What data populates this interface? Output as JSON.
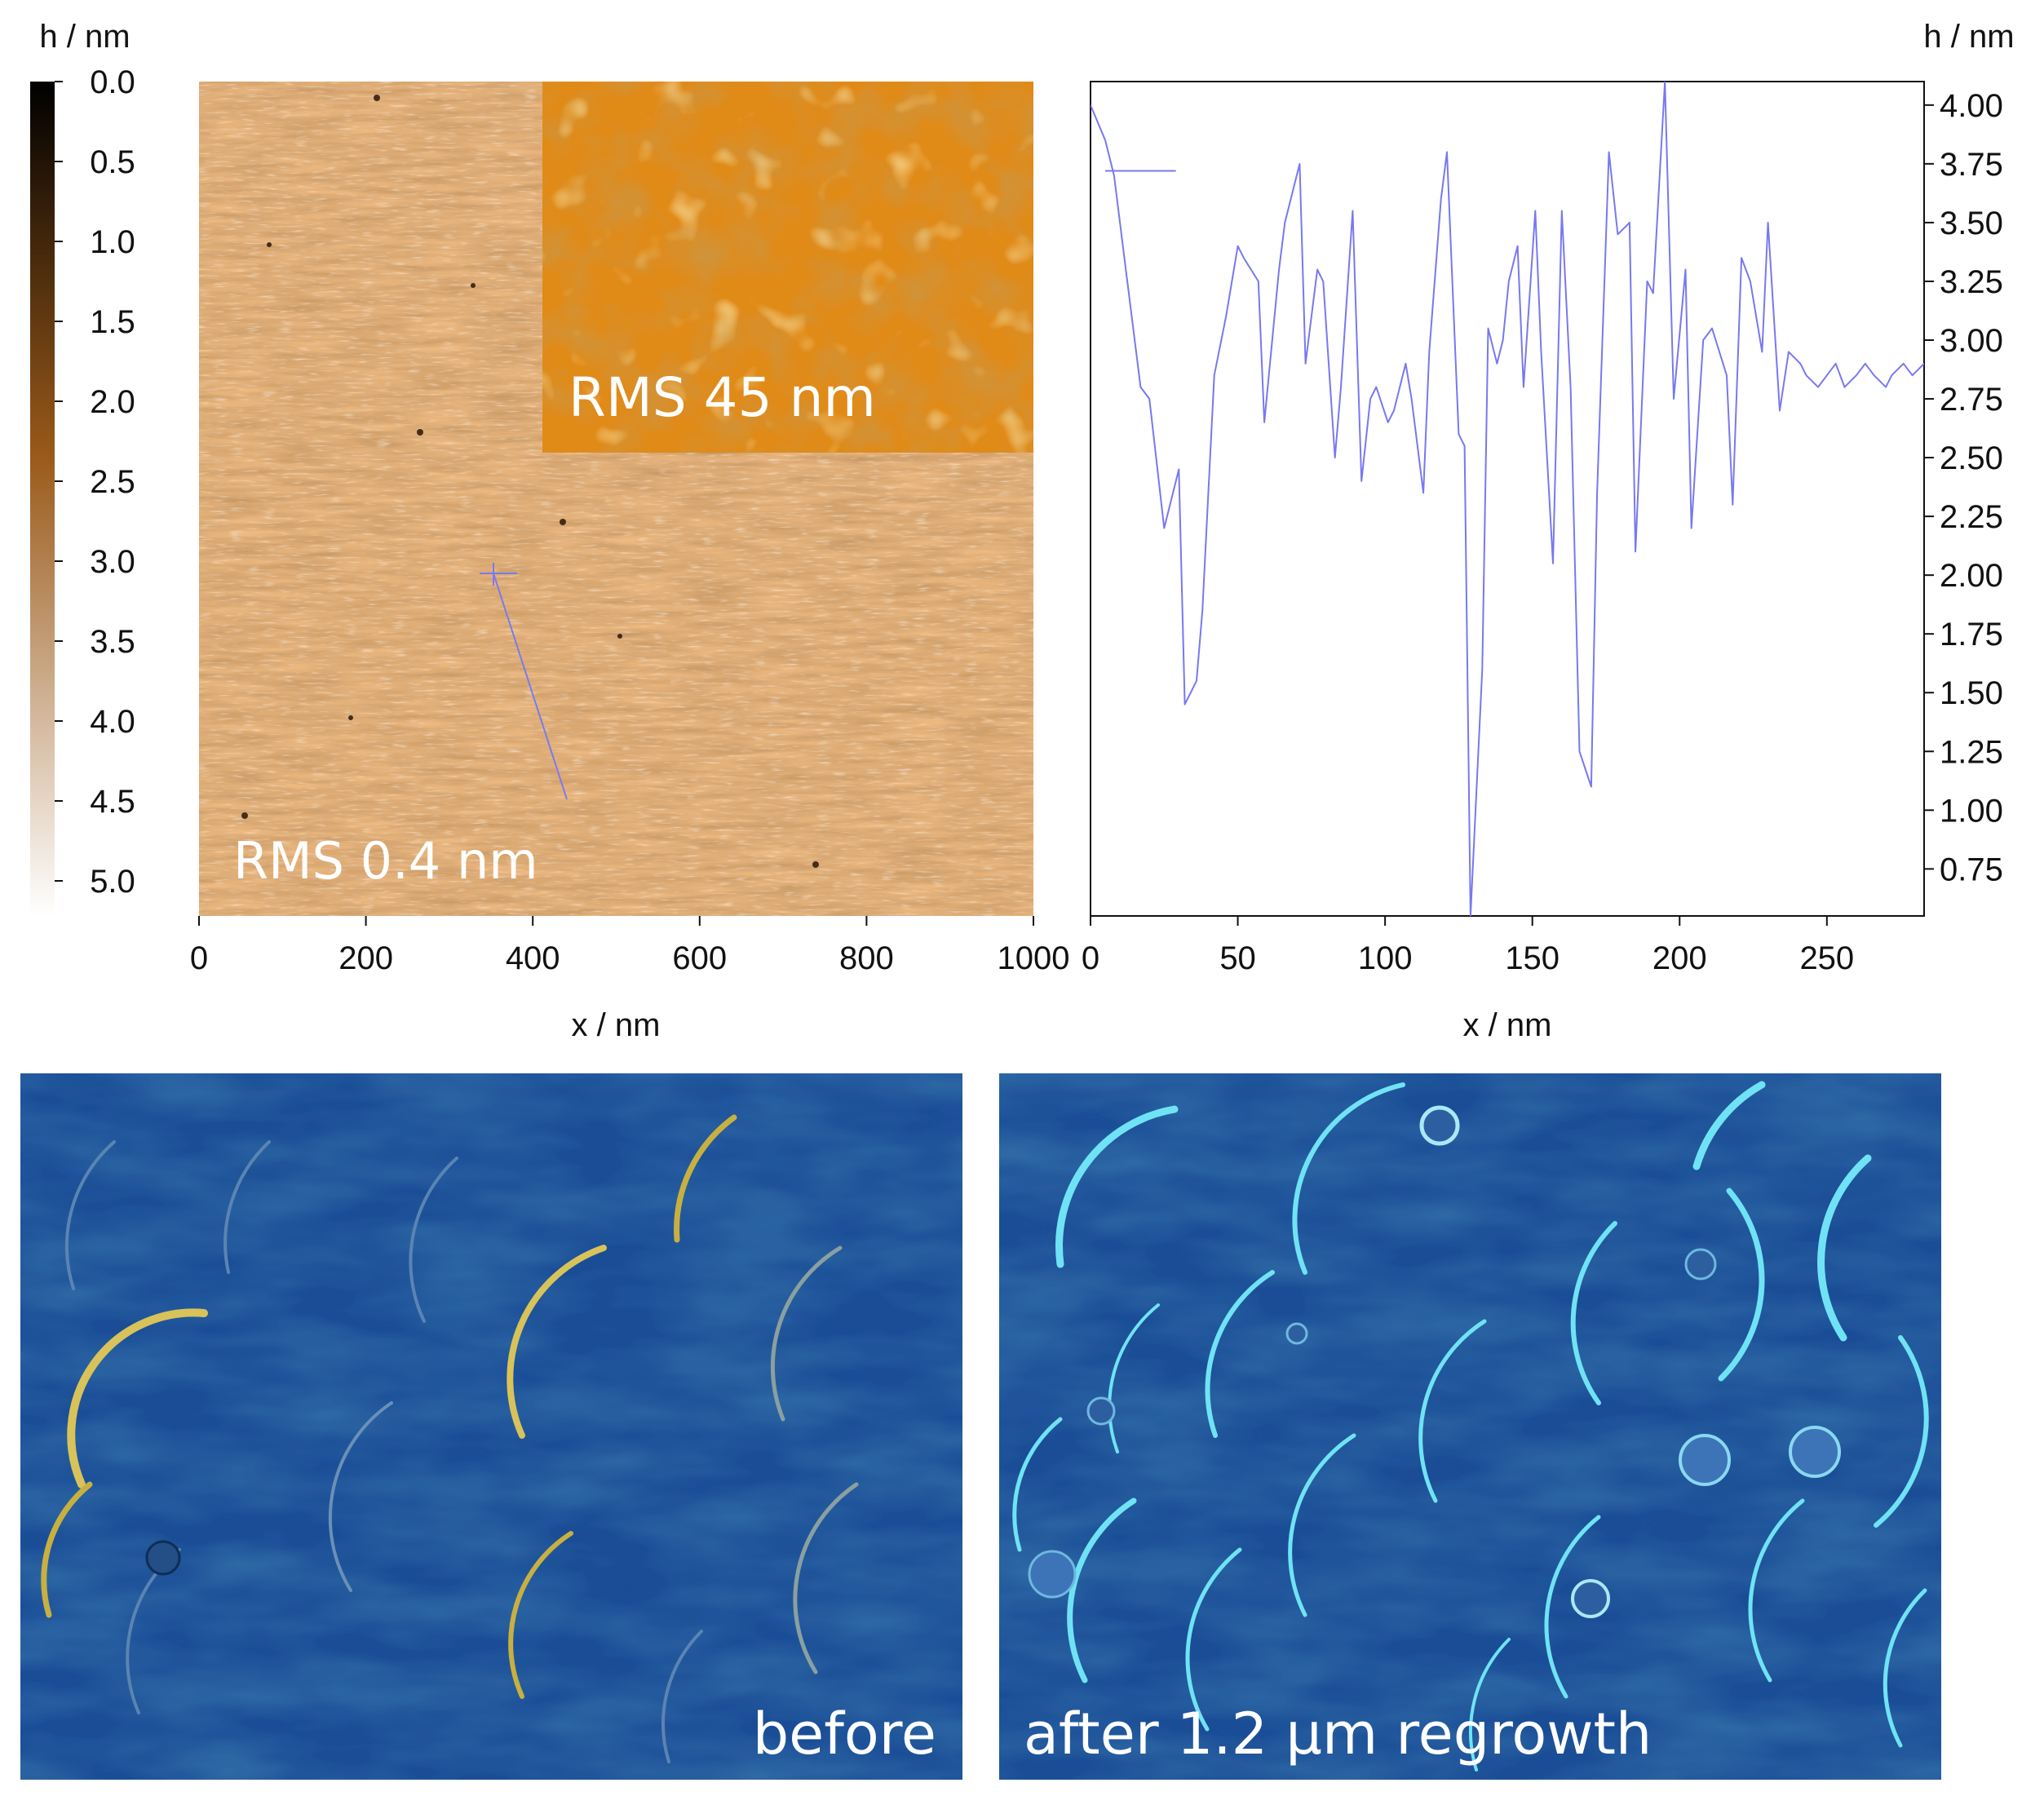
{
  "colorbar": {
    "unit_label": "h / nm",
    "ticks": [
      "0.0",
      "0.5",
      "1.0",
      "1.5",
      "2.0",
      "2.5",
      "3.0",
      "3.5",
      "4.0",
      "4.5",
      "5.0"
    ],
    "colors": {
      "top": "#000000",
      "middle": "#9a5a1a",
      "bottom": "#ffffff"
    }
  },
  "afm_map": {
    "rms_label": "RMS 0.4 nm",
    "inset_label": "RMS 45 nm",
    "xlabel": "x / nm",
    "x_ticks": [
      "0",
      "200",
      "400",
      "600",
      "800",
      "1000"
    ],
    "xlim": [
      0,
      1000
    ],
    "colors": {
      "surface": "#a8622a",
      "inset": "#e08a18",
      "profile_line": "#7a7af0"
    }
  },
  "chart_data": {
    "type": "line",
    "xlabel": "x / nm",
    "ylabel": "h / nm",
    "xlim": [
      0,
      283
    ],
    "ylim": [
      0.55,
      4.1
    ],
    "x_ticks": [
      0,
      50,
      100,
      150,
      200,
      250
    ],
    "y_ticks": [
      "0.75",
      "1.00",
      "1.25",
      "1.50",
      "1.75",
      "2.00",
      "2.25",
      "2.50",
      "2.75",
      "3.00",
      "3.25",
      "3.50",
      "3.75",
      "4.00"
    ],
    "grid": false,
    "color": "#7878f0",
    "series": [
      {
        "x": [
          0,
          5,
          8,
          12,
          17,
          20,
          25,
          30,
          32,
          36,
          38,
          42,
          46,
          50,
          52,
          57,
          59,
          64,
          66,
          71,
          73,
          77,
          79,
          83,
          85,
          89,
          92,
          95,
          97,
          101,
          103,
          107,
          109,
          113,
          115,
          119,
          121,
          125,
          127,
          129,
          133,
          135,
          138,
          140,
          142,
          145,
          147,
          151,
          153,
          157,
          160,
          163,
          166,
          170,
          172,
          176,
          179,
          183,
          185,
          189,
          191,
          195,
          198,
          202,
          204,
          208,
          211,
          216,
          218,
          221,
          224,
          228,
          230,
          234,
          237,
          241,
          243,
          247,
          250,
          253,
          256,
          260,
          263,
          266,
          270,
          272,
          276,
          279,
          283
        ],
        "y": [
          4.0,
          3.85,
          3.7,
          3.3,
          2.8,
          2.75,
          2.2,
          2.45,
          1.45,
          1.55,
          1.85,
          2.85,
          3.1,
          3.4,
          3.35,
          3.25,
          2.65,
          3.3,
          3.5,
          3.75,
          2.9,
          3.3,
          3.25,
          2.5,
          2.8,
          3.55,
          2.4,
          2.75,
          2.8,
          2.65,
          2.7,
          2.9,
          2.75,
          2.35,
          2.95,
          3.6,
          3.8,
          2.6,
          2.55,
          0.55,
          1.6,
          3.05,
          2.9,
          3.0,
          3.25,
          3.4,
          2.8,
          3.55,
          2.95,
          2.05,
          3.55,
          2.8,
          1.25,
          1.1,
          2.35,
          3.8,
          3.45,
          3.5,
          2.1,
          3.25,
          3.2,
          4.1,
          2.75,
          3.3,
          2.2,
          3.0,
          3.05,
          2.85,
          2.3,
          3.35,
          3.25,
          2.95,
          3.5,
          2.7,
          2.95,
          2.9,
          2.85,
          2.8,
          2.85,
          2.9,
          2.8,
          2.85,
          2.9,
          2.85,
          2.8,
          2.85,
          2.9,
          2.85,
          2.9
        ]
      },
      {
        "x": [
          5,
          29
        ],
        "y": [
          3.72,
          3.72
        ]
      }
    ]
  },
  "micrographs": {
    "before_label": "before",
    "after_label": "after 1.2 µm regrowth",
    "colors": {
      "background": "#1a4d96",
      "highlight": "#6fe3f5",
      "edge": "#c8b040"
    }
  }
}
